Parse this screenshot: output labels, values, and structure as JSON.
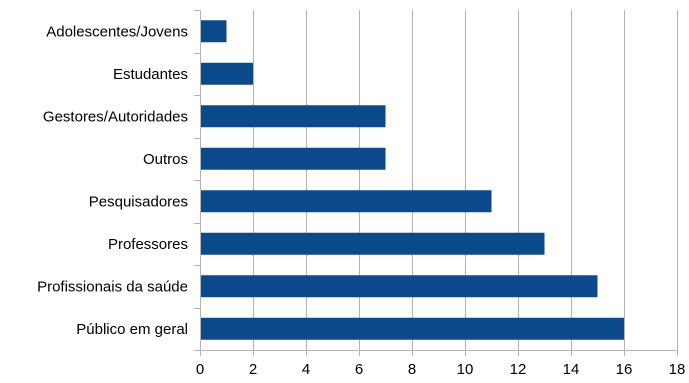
{
  "chart_data": {
    "type": "bar",
    "orientation": "horizontal",
    "categories": [
      "Adolescentes/Jovens",
      "Estudantes",
      "Gestores/Autoridades",
      "Outros",
      "Pesquisadores",
      "Professores",
      "Profissionais da saúde",
      "Público em geral"
    ],
    "values": [
      1,
      2,
      7,
      7,
      11,
      13,
      15,
      16
    ],
    "xlim": [
      0,
      18
    ],
    "x_ticks": [
      "0",
      "2",
      "4",
      "6",
      "8",
      "10",
      "12",
      "14",
      "16",
      "18"
    ],
    "grid": true,
    "legend": "none",
    "bar_color": "#0b4a8b",
    "grid_color": "#b3b3b3"
  }
}
